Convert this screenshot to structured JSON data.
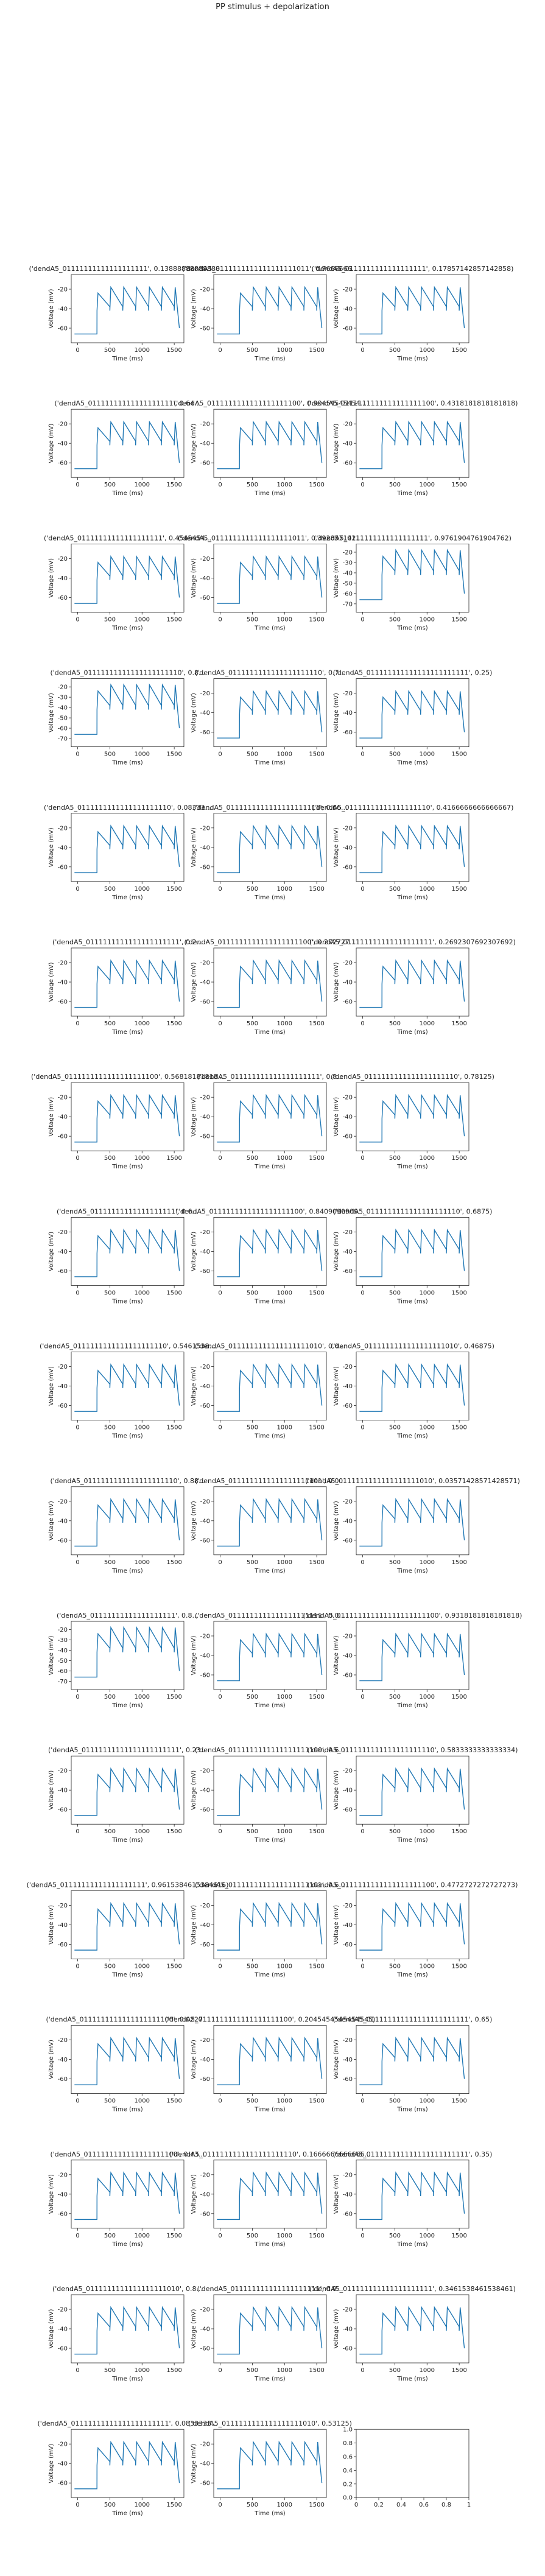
{
  "suptitle": "PP stimulus + depolarization",
  "axis_defaults": {
    "xlabel": "Time (ms)",
    "ylabel": "Voltage (mV)",
    "xticks": [
      0,
      500,
      1000,
      1500
    ],
    "series_color": "#1f77b4"
  },
  "chart_data": [
    {
      "type": "line",
      "title": "('dendA5_01111111111111111111', 0.13888888888888...",
      "yticks": [
        -20,
        -40,
        -60
      ],
      "ylim": [
        -75,
        -5
      ],
      "xlim": [
        -100,
        1650
      ]
    },
    {
      "type": "line",
      "title": "('dendA5_0111111111111111111011', 0.7666666...",
      "yticks": [
        -20,
        -40,
        -60
      ],
      "ylim": [
        -75,
        -5
      ],
      "xlim": [
        -100,
        1650
      ]
    },
    {
      "type": "line",
      "title": "('dendA5_0111111111111111111', 0.17857142857142858)",
      "yticks": [
        -20,
        -40,
        -60
      ],
      "ylim": [
        -75,
        -5
      ],
      "xlim": [
        -100,
        1650
      ]
    },
    {
      "type": "line",
      "title": "('dendA5_01111111111111111111', 0.64...",
      "yticks": [
        -20,
        -40,
        -60
      ],
      "ylim": [
        -75,
        -5
      ],
      "xlim": [
        -100,
        1650
      ]
    },
    {
      "type": "line",
      "title": "('dendA5_0111111111111111111100', 0.90454545454...",
      "yticks": [
        -20,
        -40,
        -60
      ],
      "ylim": [
        -75,
        -5
      ],
      "xlim": [
        -100,
        1650
      ]
    },
    {
      "type": "line",
      "title": "('dendA5_0111111111111111111100', 0.4318181818181818)",
      "yticks": [
        -20,
        -40,
        -60
      ],
      "ylim": [
        -75,
        -5
      ],
      "xlim": [
        -100,
        1650
      ]
    },
    {
      "type": "line",
      "title": "('dendA5_01111111111111111111', 0.4545454...",
      "yticks": [
        -20,
        -40,
        -60
      ],
      "ylim": [
        -75,
        -5
      ],
      "xlim": [
        -100,
        1650
      ]
    },
    {
      "type": "line",
      "title": "('dendA5_0111111111111111111011', 0.392857142...",
      "yticks": [
        -20,
        -40,
        -60
      ],
      "ylim": [
        -75,
        -5
      ],
      "xlim": [
        -100,
        1650
      ]
    },
    {
      "type": "line",
      "title": "('dendA5_0111111111111111111', 0.9761904761904762)",
      "yticks": [
        -20,
        -30,
        -40,
        -50,
        -60,
        -70
      ],
      "ylim": [
        -78,
        -12
      ],
      "xlim": [
        -100,
        1650
      ]
    },
    {
      "type": "line",
      "title": "('dendA5_01111111111111111111110', 0.8...",
      "yticks": [
        -20,
        -30,
        -40,
        -50,
        -60,
        -70
      ],
      "ylim": [
        -78,
        -12
      ],
      "xlim": [
        -100,
        1650
      ]
    },
    {
      "type": "line",
      "title": "('dendA5_0111111111111111111110', 0.7...",
      "yticks": [
        -20,
        -40,
        -60
      ],
      "ylim": [
        -75,
        -5
      ],
      "xlim": [
        -100,
        1650
      ]
    },
    {
      "type": "line",
      "title": "('dendA5_011111111111111111111111', 0.25)",
      "yticks": [
        -20,
        -40,
        -60
      ],
      "ylim": [
        -75,
        -5
      ],
      "xlim": [
        -100,
        1650
      ]
    },
    {
      "type": "line",
      "title": "('dendA5_0111111111111111111110', 0.08333...",
      "yticks": [
        -20,
        -40,
        -60
      ],
      "ylim": [
        -75,
        -5
      ],
      "xlim": [
        -100,
        1650
      ]
    },
    {
      "type": "line",
      "title": "('dendA5_0111111111111111111111', 0.66...",
      "yticks": [
        -20,
        -40,
        -60
      ],
      "ylim": [
        -75,
        -5
      ],
      "xlim": [
        -100,
        1650
      ]
    },
    {
      "type": "line",
      "title": "('dendA5_01111111111111111110', 0.4166666666666667)",
      "yticks": [
        -20,
        -40,
        -60
      ],
      "ylim": [
        -75,
        -5
      ],
      "xlim": [
        -100,
        1650
      ]
    },
    {
      "type": "line",
      "title": "('dendA5_0111111111111111111111', 0.2...",
      "yticks": [
        -20,
        -40,
        -60
      ],
      "ylim": [
        -75,
        -5
      ],
      "xlim": [
        -100,
        1650
      ]
    },
    {
      "type": "line",
      "title": "('dendA5_0111111111111111111100', 0.272727...",
      "yticks": [
        -20,
        -40,
        -60
      ],
      "ylim": [
        -75,
        -5
      ],
      "xlim": [
        -100,
        1650
      ]
    },
    {
      "type": "line",
      "title": "('dendA5_011111111111111111111', 0.2692307692307692)",
      "yticks": [
        -20,
        -40,
        -60
      ],
      "ylim": [
        -75,
        -5
      ],
      "xlim": [
        -100,
        1650
      ]
    },
    {
      "type": "line",
      "title": "('dendA5_0111111111111111111100', 0.56818181818...",
      "yticks": [
        -20,
        -40,
        -60
      ],
      "ylim": [
        -75,
        -5
      ],
      "xlim": [
        -100,
        1650
      ]
    },
    {
      "type": "line",
      "title": "('dendA5_011111111111111111111', 0.8...",
      "yticks": [
        -20,
        -40,
        -60
      ],
      "ylim": [
        -75,
        -5
      ],
      "xlim": [
        -100,
        1650
      ]
    },
    {
      "type": "line",
      "title": "('dendA5_0111111111111111111110', 0.78125)",
      "yticks": [
        -20,
        -40,
        -60
      ],
      "ylim": [
        -75,
        -5
      ],
      "xlim": [
        -100,
        1650
      ]
    },
    {
      "type": "line",
      "title": "('dendA5_01111111111111111111', 0.6...",
      "yticks": [
        -20,
        -40,
        -60
      ],
      "ylim": [
        -75,
        -5
      ],
      "xlim": [
        -100,
        1650
      ]
    },
    {
      "type": "line",
      "title": "('dendA5_0111111111111111111100', 0.8409090909...",
      "yticks": [
        -20,
        -40,
        -60
      ],
      "ylim": [
        -75,
        -5
      ],
      "xlim": [
        -100,
        1650
      ]
    },
    {
      "type": "line",
      "title": "('dendA5_0111111111111111111110', 0.6875)",
      "yticks": [
        -20,
        -40,
        -60
      ],
      "ylim": [
        -75,
        -5
      ],
      "xlim": [
        -100,
        1650
      ]
    },
    {
      "type": "line",
      "title": "('dendA5_0111111111111111111110', 0.5461538...",
      "yticks": [
        -20,
        -40,
        -60
      ],
      "ylim": [
        -75,
        -5
      ],
      "xlim": [
        -100,
        1650
      ]
    },
    {
      "type": "line",
      "title": "('dendA5_0111111111111111111010', 0.0...",
      "yticks": [
        -20,
        -40,
        -60
      ],
      "ylim": [
        -75,
        -5
      ],
      "xlim": [
        -100,
        1650
      ]
    },
    {
      "type": "line",
      "title": "('dendA5_0111111111111111111010', 0.46875)",
      "yticks": [
        -20,
        -40,
        -60
      ],
      "ylim": [
        -75,
        -5
      ],
      "xlim": [
        -100,
        1650
      ]
    },
    {
      "type": "line",
      "title": "('dendA5_0111111111111111111110', 0.88...",
      "yticks": [
        -20,
        -40,
        -60
      ],
      "ylim": [
        -75,
        -5
      ],
      "xlim": [
        -100,
        1650
      ]
    },
    {
      "type": "line",
      "title": "('dendA5_0111111111111111111101', 0.0...",
      "yticks": [
        -20,
        -40,
        -60
      ],
      "ylim": [
        -75,
        -5
      ],
      "xlim": [
        -100,
        1650
      ]
    },
    {
      "type": "line",
      "title": "('dendA5_0111111111111111111010', 0.03571428571428571)",
      "yticks": [
        -20,
        -40,
        -60
      ],
      "ylim": [
        -75,
        -5
      ],
      "xlim": [
        -100,
        1650
      ]
    },
    {
      "type": "line",
      "title": "('dendA5_01111111111111111111', 0.8...",
      "yticks": [
        -20,
        -30,
        -40,
        -50,
        -60,
        -70
      ],
      "ylim": [
        -78,
        -12
      ],
      "xlim": [
        -100,
        1650
      ]
    },
    {
      "type": "line",
      "title": "('dendA5_0111111111111111111111', 0.0...",
      "yticks": [
        -20,
        -40,
        -60
      ],
      "ylim": [
        -75,
        -5
      ],
      "xlim": [
        -100,
        1650
      ]
    },
    {
      "type": "line",
      "title": "('dendA5_011111111111111111111100', 0.9318181818181818)",
      "yticks": [
        -20,
        -40,
        -60
      ],
      "ylim": [
        -75,
        -5
      ],
      "xlim": [
        -100,
        1650
      ]
    },
    {
      "type": "line",
      "title": "('dendA5_01111111111111111111111', 0.23...",
      "yticks": [
        -20,
        -40,
        -60
      ],
      "ylim": [
        -75,
        -5
      ],
      "xlim": [
        -100,
        1650
      ]
    },
    {
      "type": "line",
      "title": "('dendA5_0111111111111111111100', 0.6...",
      "yticks": [
        -20,
        -40,
        -60
      ],
      "ylim": [
        -75,
        -5
      ],
      "xlim": [
        -100,
        1650
      ]
    },
    {
      "type": "line",
      "title": "('dendA5_0111111111111111111110', 0.5833333333333334)",
      "yticks": [
        -20,
        -40,
        -60
      ],
      "ylim": [
        -75,
        -5
      ],
      "xlim": [
        -100,
        1650
      ]
    },
    {
      "type": "line",
      "title": "('dendA5_01111111111111111111', 0.9615384615384616)",
      "yticks": [
        -20,
        -40,
        -60
      ],
      "ylim": [
        -75,
        -5
      ],
      "xlim": [
        -100,
        1650
      ]
    },
    {
      "type": "line",
      "title": "('dendA5_0111111111111111111101', 0.6...",
      "yticks": [
        -20,
        -40,
        -60
      ],
      "ylim": [
        -75,
        -5
      ],
      "xlim": [
        -100,
        1650
      ]
    },
    {
      "type": "line",
      "title": "('dendA5_0111111111111111111100', 0.4772727272727273)",
      "yticks": [
        -20,
        -40,
        -60
      ],
      "ylim": [
        -75,
        -5
      ],
      "xlim": [
        -100,
        1650
      ]
    },
    {
      "type": "line",
      "title": "('dendA5_0111111111111111111100', 0.0227...",
      "yticks": [
        -20,
        -40,
        -60
      ],
      "ylim": [
        -75,
        -5
      ],
      "xlim": [
        -100,
        1650
      ]
    },
    {
      "type": "line",
      "title": "('dendA5_0111111111111111111100', 0.2045454545454545)",
      "yticks": [
        -20,
        -40,
        -60
      ],
      "ylim": [
        -75,
        -5
      ],
      "xlim": [
        -100,
        1650
      ]
    },
    {
      "type": "line",
      "title": "('dendA5_011111111111111111111111', 0.65)",
      "yticks": [
        -20,
        -40,
        -60
      ],
      "ylim": [
        -75,
        -5
      ],
      "xlim": [
        -100,
        1650
      ]
    },
    {
      "type": "line",
      "title": "('dendA5_0111111111111111111100', 0.43...",
      "yticks": [
        -20,
        -40,
        -60
      ],
      "ylim": [
        -75,
        -5
      ],
      "xlim": [
        -100,
        1650
      ]
    },
    {
      "type": "line",
      "title": "('dendA5_0111111111111111111110', 0.1666666666666...",
      "yticks": [
        -20,
        -40,
        -60
      ],
      "ylim": [
        -75,
        -5
      ],
      "xlim": [
        -100,
        1650
      ]
    },
    {
      "type": "line",
      "title": "('dendA5_011111111111111111111111', 0.35)",
      "yticks": [
        -20,
        -40,
        -60
      ],
      "ylim": [
        -75,
        -5
      ],
      "xlim": [
        -100,
        1650
      ]
    },
    {
      "type": "line",
      "title": "('dendA5_0111111111111111111010', 0.8...",
      "yticks": [
        -20,
        -40,
        -60
      ],
      "ylim": [
        -75,
        -5
      ],
      "xlim": [
        -100,
        1650
      ]
    },
    {
      "type": "line",
      "title": "('dendA5_011111111111111111111', 0.9...",
      "yticks": [
        -20,
        -40,
        -60
      ],
      "ylim": [
        -75,
        -5
      ],
      "xlim": [
        -100,
        1650
      ]
    },
    {
      "type": "line",
      "title": "('dendA5_011111111111111111111', 0.3461538461538461)",
      "yticks": [
        -20,
        -40,
        -60
      ],
      "ylim": [
        -75,
        -5
      ],
      "xlim": [
        -100,
        1650
      ]
    },
    {
      "type": "line",
      "title": "('dendA5_01111111111111111111111', 0.0833333...",
      "yticks": [
        -20,
        -40,
        -60
      ],
      "ylim": [
        -75,
        -5
      ],
      "xlim": [
        -100,
        1650
      ]
    },
    {
      "type": "line",
      "title": "('dendA5_0111111111111111111010', 0.53125)",
      "yticks": [
        -20,
        -40,
        -60
      ],
      "ylim": [
        -75,
        -5
      ],
      "xlim": [
        -100,
        1650
      ]
    },
    {
      "type": "empty",
      "title": "",
      "xticks": [
        0.0,
        0.2,
        0.4,
        0.6,
        0.8,
        1.0
      ],
      "yticks": [
        0.0,
        0.2,
        0.4,
        0.6,
        0.8,
        1.0
      ],
      "ylim": [
        0,
        1
      ],
      "xlim": [
        0,
        1
      ],
      "xlabel": "",
      "ylabel": ""
    }
  ],
  "trace_shape": {
    "baseline_mV": -68,
    "step_on_ms": 300,
    "depolarized_mV": -40,
    "pulse_times_ms": [
      300,
      500,
      700,
      900,
      1100,
      1300,
      1500
    ],
    "end_ms": 1580
  }
}
